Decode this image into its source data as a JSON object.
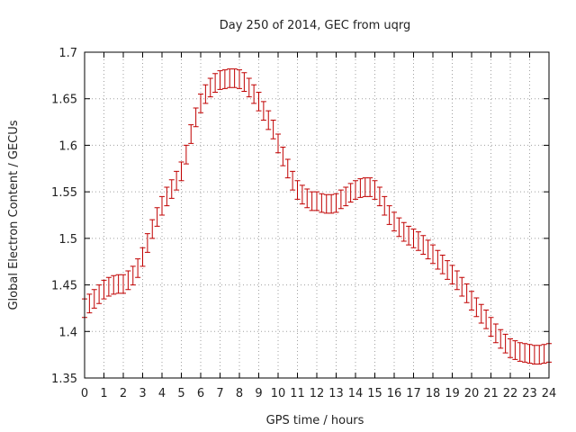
{
  "chart_data": {
    "type": "line",
    "title": "Day 250 of 2014, GEC from uqrg",
    "xlabel": "GPS time / hours",
    "ylabel": "Global Electron Content / GECUs",
    "xlim": [
      0,
      24
    ],
    "ylim": [
      1.35,
      1.7
    ],
    "xticks": [
      0,
      1,
      2,
      3,
      4,
      5,
      6,
      7,
      8,
      9,
      10,
      11,
      12,
      13,
      14,
      15,
      16,
      17,
      18,
      19,
      20,
      21,
      22,
      23,
      24
    ],
    "yticks": [
      1.35,
      1.4,
      1.45,
      1.5,
      1.55,
      1.6,
      1.65,
      1.7
    ],
    "ytick_labels": [
      "1.35",
      "1.4",
      "1.45",
      "1.5",
      "1.55",
      "1.6",
      "1.65",
      "1.7"
    ],
    "grid": true,
    "series_color": "#c00000",
    "error": 0.01,
    "x": [
      0,
      0.25,
      0.5,
      0.75,
      1,
      1.25,
      1.5,
      1.75,
      2,
      2.25,
      2.5,
      2.75,
      3,
      3.25,
      3.5,
      3.75,
      4,
      4.25,
      4.5,
      4.75,
      5,
      5.25,
      5.5,
      5.75,
      6,
      6.25,
      6.5,
      6.75,
      7,
      7.25,
      7.5,
      7.75,
      8,
      8.25,
      8.5,
      8.75,
      9,
      9.25,
      9.5,
      9.75,
      10,
      10.25,
      10.5,
      10.75,
      11,
      11.25,
      11.5,
      11.75,
      12,
      12.25,
      12.5,
      12.75,
      13,
      13.25,
      13.5,
      13.75,
      14,
      14.25,
      14.5,
      14.75,
      15,
      15.25,
      15.5,
      15.75,
      16,
      16.25,
      16.5,
      16.75,
      17,
      17.25,
      17.5,
      17.75,
      18,
      18.25,
      18.5,
      18.75,
      19,
      19.25,
      19.5,
      19.75,
      20,
      20.25,
      20.5,
      20.75,
      21,
      21.25,
      21.5,
      21.75,
      22,
      22.25,
      22.5,
      22.75,
      23,
      23.25,
      23.5,
      23.75,
      24
    ],
    "y": [
      1.425,
      1.43,
      1.435,
      1.44,
      1.445,
      1.448,
      1.45,
      1.451,
      1.451,
      1.455,
      1.46,
      1.468,
      1.48,
      1.495,
      1.51,
      1.523,
      1.535,
      1.545,
      1.553,
      1.562,
      1.572,
      1.59,
      1.612,
      1.63,
      1.645,
      1.655,
      1.662,
      1.667,
      1.67,
      1.671,
      1.672,
      1.672,
      1.671,
      1.668,
      1.662,
      1.655,
      1.647,
      1.637,
      1.627,
      1.617,
      1.602,
      1.588,
      1.575,
      1.562,
      1.552,
      1.547,
      1.543,
      1.54,
      1.54,
      1.538,
      1.537,
      1.537,
      1.538,
      1.542,
      1.545,
      1.549,
      1.552,
      1.554,
      1.555,
      1.555,
      1.552,
      1.545,
      1.535,
      1.525,
      1.518,
      1.512,
      1.507,
      1.503,
      1.5,
      1.497,
      1.493,
      1.488,
      1.483,
      1.477,
      1.472,
      1.466,
      1.461,
      1.455,
      1.448,
      1.441,
      1.433,
      1.426,
      1.419,
      1.413,
      1.405,
      1.398,
      1.392,
      1.387,
      1.382,
      1.38,
      1.378,
      1.377,
      1.376,
      1.375,
      1.375,
      1.376,
      1.377
    ]
  }
}
